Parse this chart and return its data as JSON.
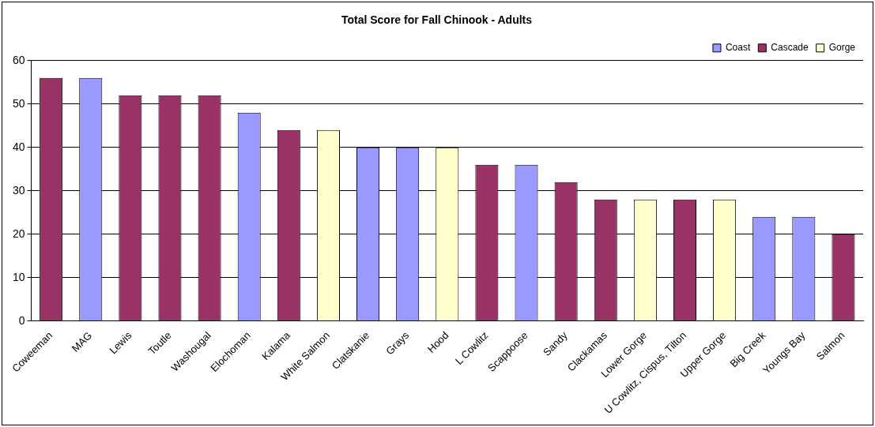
{
  "chart_data": {
    "type": "bar",
    "title": "Total Score for Fall Chinook - Adults",
    "categories": [
      "Coweeman",
      "MAG",
      "Lewis",
      "Toutle",
      "Washougal",
      "Elochoman",
      "Kalama",
      "White Salmon",
      "Clatskanie",
      "Grays",
      "Hood",
      "L Cowlitz",
      "Scappoose",
      "Sandy",
      "Clackamas",
      "Lower Gorge",
      "U Cowlitz, Cispus, Tilton",
      "Upper Gorge",
      "Big Creek",
      "Youngs Bay",
      "Salmon"
    ],
    "series": [
      {
        "name": "Coast",
        "color": "#9999ff",
        "values": [
          null,
          56,
          null,
          null,
          null,
          48,
          null,
          null,
          40,
          40,
          null,
          null,
          36,
          null,
          null,
          null,
          null,
          null,
          24,
          24,
          null
        ]
      },
      {
        "name": "Cascade",
        "color": "#993366",
        "values": [
          56,
          null,
          52,
          52,
          52,
          null,
          44,
          null,
          null,
          null,
          null,
          36,
          null,
          32,
          28,
          null,
          28,
          null,
          null,
          null,
          20
        ]
      },
      {
        "name": "Gorge",
        "color": "#ffffcc",
        "values": [
          null,
          null,
          null,
          null,
          null,
          null,
          null,
          44,
          null,
          null,
          40,
          null,
          null,
          null,
          null,
          28,
          null,
          28,
          null,
          null,
          null
        ]
      }
    ],
    "stacked": true,
    "ylim": [
      0,
      60
    ],
    "yticks": [
      0,
      10,
      20,
      30,
      40,
      50,
      60
    ],
    "grid": "y",
    "legend": "top right"
  }
}
